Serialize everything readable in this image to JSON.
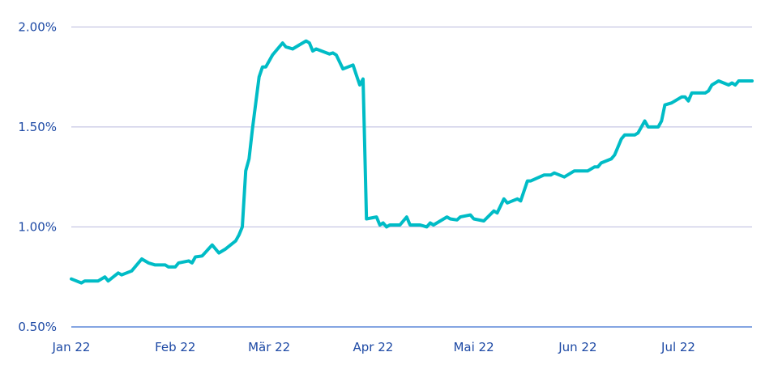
{
  "chart_data": {
    "type": "line",
    "title": "",
    "xlabel": "",
    "ylabel": "",
    "ylim": [
      0.5,
      2.0
    ],
    "xlim": [
      "2022-01-01",
      "2022-07-23"
    ],
    "y_ticks": [
      {
        "value": 0.5,
        "label": "0.50%"
      },
      {
        "value": 1.0,
        "label": "1.00%"
      },
      {
        "value": 1.5,
        "label": "1.50%"
      },
      {
        "value": 2.0,
        "label": "2.00%"
      }
    ],
    "x_ticks": [
      {
        "date": "2022-01-01",
        "label": "Jan 22"
      },
      {
        "date": "2022-02-01",
        "label": "Feb 22"
      },
      {
        "date": "2022-03-01",
        "label": "Mär 22"
      },
      {
        "date": "2022-04-01",
        "label": "Apr 22"
      },
      {
        "date": "2022-05-01",
        "label": "Mai 22"
      },
      {
        "date": "2022-06-01",
        "label": "Jun 22"
      },
      {
        "date": "2022-07-01",
        "label": "Jul 22"
      }
    ],
    "grid": "horizontal",
    "colors": {
      "line": "#00bcc6",
      "grid": "#b9b9de",
      "axis": "#3b6fd0",
      "text": "#1e4aa5"
    },
    "series": [
      {
        "x": [
          "2022-01-01",
          "2022-01-04",
          "2022-01-05",
          "2022-01-09",
          "2022-01-11",
          "2022-01-12",
          "2022-01-15",
          "2022-01-16",
          "2022-01-19",
          "2022-01-22",
          "2022-01-24",
          "2022-01-26",
          "2022-01-29",
          "2022-01-30",
          "2022-02-01",
          "2022-02-02",
          "2022-02-05",
          "2022-02-06",
          "2022-02-07",
          "2022-02-09",
          "2022-02-12",
          "2022-02-14",
          "2022-02-16",
          "2022-02-19",
          "2022-02-20",
          "2022-02-21",
          "2022-02-22",
          "2022-02-23",
          "2022-02-24",
          "2022-02-26",
          "2022-02-27",
          "2022-02-28",
          "2022-03-02",
          "2022-03-05",
          "2022-03-06",
          "2022-03-07",
          "2022-03-08",
          "2022-03-10",
          "2022-03-12",
          "2022-03-13",
          "2022-03-14",
          "2022-03-15",
          "2022-03-19",
          "2022-03-20",
          "2022-03-21",
          "2022-03-23",
          "2022-03-26",
          "2022-03-27",
          "2022-03-28",
          "2022-03-29",
          "2022-03-30",
          "2022-04-02",
          "2022-04-03",
          "2022-04-04",
          "2022-04-05",
          "2022-04-06",
          "2022-04-09",
          "2022-04-11",
          "2022-04-12",
          "2022-04-15",
          "2022-04-17",
          "2022-04-18",
          "2022-04-19",
          "2022-04-23",
          "2022-04-24",
          "2022-04-26",
          "2022-04-27",
          "2022-04-30",
          "2022-05-01",
          "2022-05-04",
          "2022-05-07",
          "2022-05-08",
          "2022-05-10",
          "2022-05-11",
          "2022-05-14",
          "2022-05-15",
          "2022-05-17",
          "2022-05-18",
          "2022-05-22",
          "2022-05-24",
          "2022-05-25",
          "2022-05-28",
          "2022-05-31",
          "2022-06-04",
          "2022-06-06",
          "2022-06-07",
          "2022-06-08",
          "2022-06-11",
          "2022-06-12",
          "2022-06-14",
          "2022-06-15",
          "2022-06-18",
          "2022-06-19",
          "2022-06-21",
          "2022-06-22",
          "2022-06-25",
          "2022-06-26",
          "2022-06-27",
          "2022-06-29",
          "2022-07-02",
          "2022-07-03",
          "2022-07-04",
          "2022-07-05",
          "2022-07-09",
          "2022-07-10",
          "2022-07-11",
          "2022-07-13",
          "2022-07-16",
          "2022-07-17",
          "2022-07-18",
          "2022-07-19",
          "2022-07-23"
        ],
        "y": [
          0.74,
          0.72,
          0.73,
          0.73,
          0.75,
          0.73,
          0.77,
          0.76,
          0.78,
          0.84,
          0.82,
          0.81,
          0.81,
          0.8,
          0.8,
          0.82,
          0.83,
          0.82,
          0.85,
          0.855,
          0.91,
          0.87,
          0.89,
          0.93,
          0.96,
          1.0,
          1.28,
          1.34,
          1.49,
          1.75,
          1.8,
          1.8,
          1.86,
          1.92,
          1.9,
          1.895,
          1.89,
          1.91,
          1.93,
          1.92,
          1.88,
          1.89,
          1.865,
          1.87,
          1.86,
          1.79,
          1.81,
          1.76,
          1.71,
          1.74,
          1.04,
          1.05,
          1.01,
          1.02,
          1.0,
          1.01,
          1.01,
          1.05,
          1.01,
          1.01,
          1.0,
          1.02,
          1.01,
          1.05,
          1.04,
          1.035,
          1.05,
          1.06,
          1.04,
          1.03,
          1.08,
          1.07,
          1.14,
          1.12,
          1.14,
          1.13,
          1.23,
          1.23,
          1.26,
          1.26,
          1.27,
          1.25,
          1.28,
          1.28,
          1.3,
          1.3,
          1.32,
          1.34,
          1.36,
          1.44,
          1.46,
          1.46,
          1.47,
          1.53,
          1.5,
          1.5,
          1.53,
          1.61,
          1.62,
          1.65,
          1.65,
          1.63,
          1.67,
          1.67,
          1.68,
          1.71,
          1.73,
          1.71,
          1.72,
          1.71,
          1.73,
          1.73
        ]
      }
    ]
  }
}
